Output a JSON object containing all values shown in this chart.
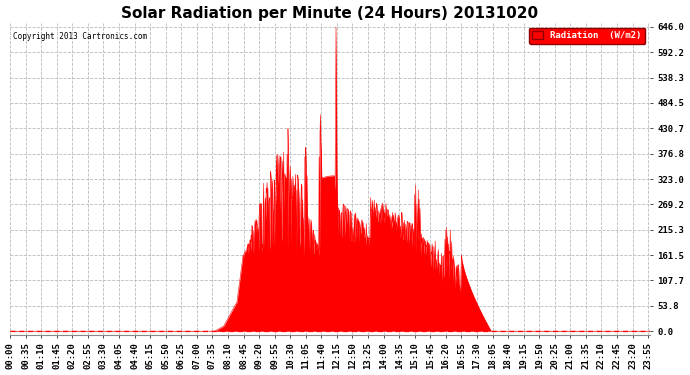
{
  "title": "Solar Radiation per Minute (24 Hours) 20131020",
  "copyright_text": "Copyright 2013 Cartronics.com",
  "legend_label": "Radiation  (W/m2)",
  "yticks": [
    0.0,
    53.8,
    107.7,
    161.5,
    215.3,
    269.2,
    323.0,
    376.8,
    430.7,
    484.5,
    538.3,
    592.2,
    646.0
  ],
  "ymax": 646.0,
  "ymin": 0.0,
  "fill_color": "#FF0000",
  "line_color": "#FF0000",
  "bg_color": "#FFFFFF",
  "grid_color": "#BBBBBB",
  "title_fontsize": 11,
  "tick_fontsize": 6.5,
  "xtick_labels": [
    "00:00",
    "00:35",
    "01:10",
    "01:45",
    "02:20",
    "02:55",
    "03:30",
    "04:05",
    "04:40",
    "05:15",
    "05:50",
    "06:25",
    "07:00",
    "07:35",
    "08:10",
    "08:45",
    "09:20",
    "09:55",
    "10:30",
    "11:05",
    "11:40",
    "12:15",
    "12:50",
    "13:25",
    "14:00",
    "14:35",
    "15:10",
    "15:45",
    "16:20",
    "16:55",
    "17:30",
    "18:05",
    "18:40",
    "19:15",
    "19:50",
    "20:25",
    "21:00",
    "21:35",
    "22:10",
    "22:45",
    "23:20",
    "23:55"
  ],
  "num_minutes": 1440,
  "sunrise_min": 460,
  "sunset_min": 1082
}
